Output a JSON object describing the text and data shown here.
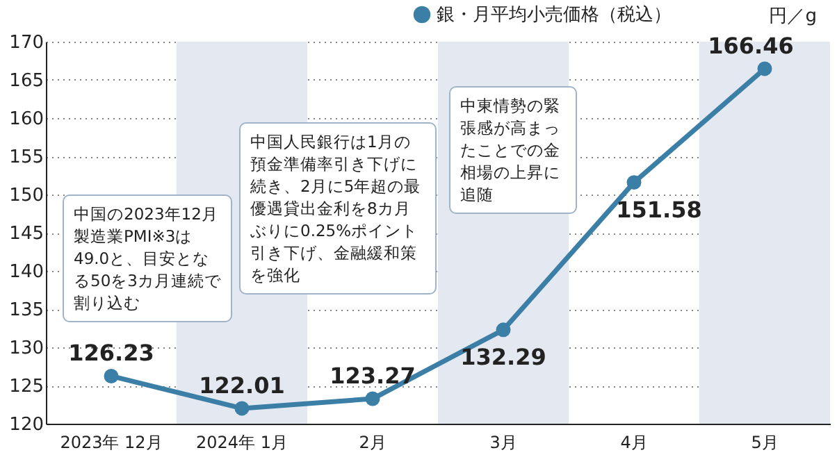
{
  "chart_data": {
    "type": "line",
    "ylabel": "円／g",
    "categories": [
      "2023年 12月",
      "2024年 1月",
      "2月",
      "3月",
      "4月",
      "5月"
    ],
    "series": [
      {
        "name": "銀・月平均小売価格（税込）",
        "color": "#3b7ea6",
        "values": [
          126.23,
          122.01,
          123.27,
          132.29,
          151.58,
          166.46
        ]
      }
    ],
    "ylim": [
      120,
      170
    ],
    "yticks": [
      120,
      125,
      130,
      135,
      140,
      145,
      150,
      155,
      160,
      165,
      170
    ],
    "grid": "y",
    "legend": "top right",
    "marker": "circle",
    "data_labels": true,
    "bands": [
      {
        "axis": "x",
        "from": "2024年 1月",
        "to": "2024年 1月",
        "color": "#e4e9f1"
      },
      {
        "axis": "x",
        "from": "3月",
        "to": "3月",
        "color": "#e4e9f1"
      },
      {
        "axis": "x",
        "from": "5月",
        "to": "5月",
        "color": "#e4e9f1"
      }
    ],
    "annotations": [
      "中国の2023年12月製造業PMI※3は49.0と、目安となる50を3カ月連続で割り込む",
      "中国人民銀行は1月の預金準備率引き下げに続き、2月に5年超の最優遇貸出金利を8カ月ぶりに0.25%ポイント引き下げ、金融緩和策を強化",
      "中東情勢の緊張感が高まったことでの金相場の上昇に追随"
    ]
  }
}
